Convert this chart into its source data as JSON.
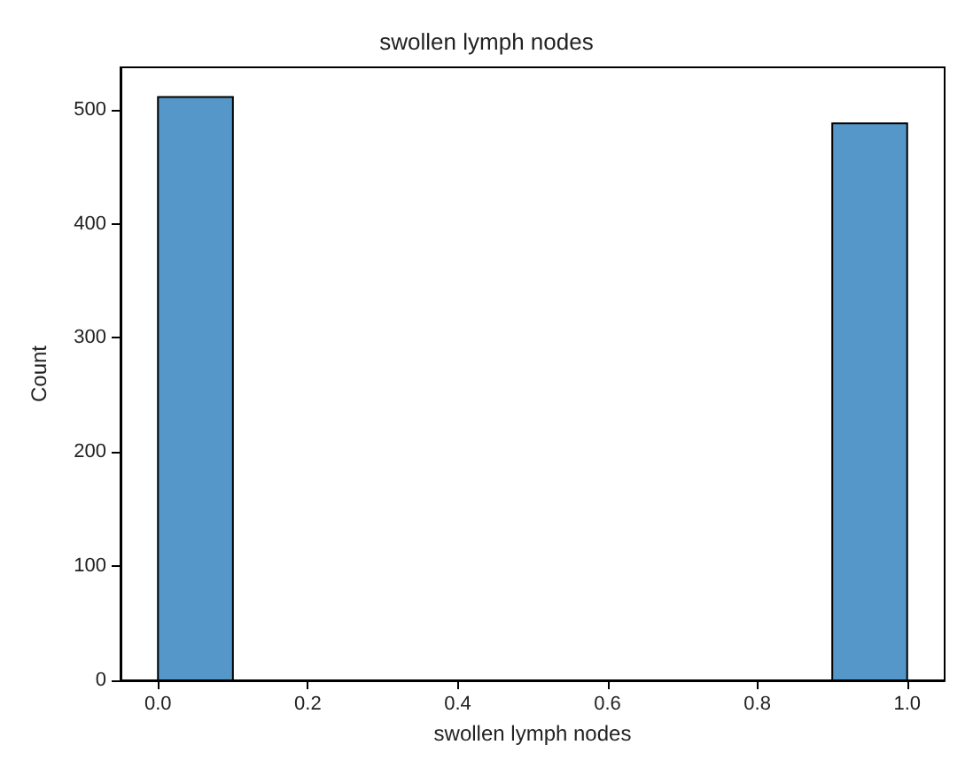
{
  "chart_data": {
    "type": "histogram",
    "title": "swollen lymph nodes",
    "xlabel": "swollen lymph nodes",
    "ylabel": "Count",
    "bins": [
      0,
      0.1,
      0.2,
      0.3,
      0.4,
      0.5,
      0.6,
      0.7,
      0.8,
      0.9,
      1.0
    ],
    "values": [
      511,
      0,
      0,
      0,
      0,
      0,
      0,
      0,
      0,
      488
    ],
    "color": "#5497c8",
    "xlim": [
      -0.05,
      1.05
    ],
    "xticks": [
      {
        "value": 0,
        "label": "0.0"
      },
      {
        "value": 0.2,
        "label": "0.2"
      },
      {
        "value": 0.4,
        "label": "0.4"
      },
      {
        "value": 0.6,
        "label": "0.6"
      },
      {
        "value": 0.8,
        "label": "0.8"
      },
      {
        "value": 1,
        "label": "1.0"
      }
    ],
    "ylim": [
      0,
      537
    ],
    "yticks": [
      0,
      100,
      200,
      300,
      400,
      500
    ],
    "grid": false
  }
}
